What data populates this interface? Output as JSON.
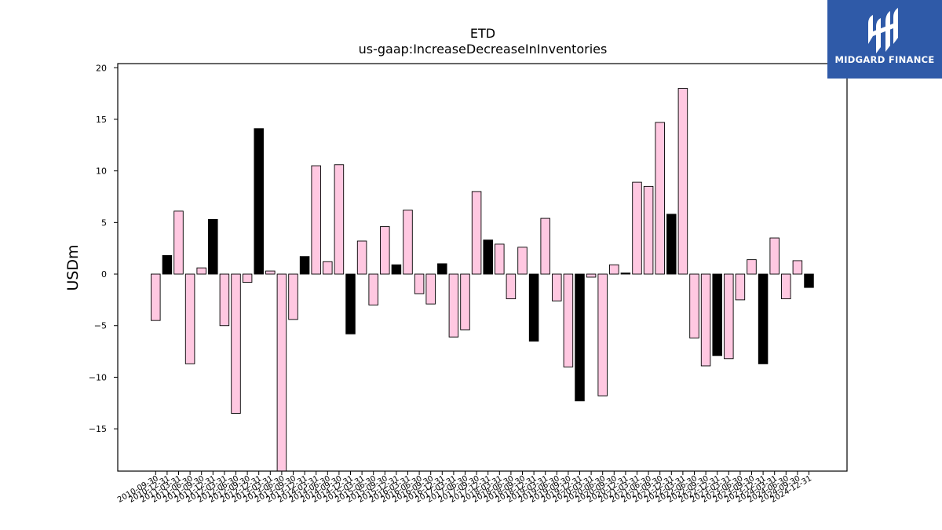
{
  "brand": {
    "name": "MIDGARD FINANCE",
    "color": "#2f5aa8"
  },
  "chart_data": {
    "type": "bar",
    "title": "ETD",
    "subtitle": "us-gaap:IncreaseDecreaseInInventories",
    "ylabel": "USDm",
    "xlabel": "",
    "ylim": [
      -19.1,
      20.4
    ],
    "yticks": [
      -15,
      -10,
      -5,
      0,
      5,
      10,
      15,
      20
    ],
    "grid": false,
    "colors": {
      "default": "#ffc8e1",
      "highlight": "#000000",
      "edge": "#000000"
    },
    "categories": [
      "2010-09-30",
      "2010-12-31",
      "2011-03-31",
      "2011-06-30",
      "2011-09-30",
      "2011-12-31",
      "2012-03-31",
      "2012-06-30",
      "2012-09-30",
      "2012-12-31",
      "2013-03-31",
      "2013-06-30",
      "2013-09-30",
      "2013-12-31",
      "2014-03-31",
      "2014-06-30",
      "2014-09-30",
      "2014-12-31",
      "2015-03-31",
      "2015-06-30",
      "2015-09-30",
      "2015-12-31",
      "2016-03-31",
      "2016-06-30",
      "2016-09-30",
      "2016-12-31",
      "2017-03-31",
      "2017-06-30",
      "2017-09-30",
      "2017-12-31",
      "2018-03-31",
      "2018-06-30",
      "2018-09-30",
      "2018-12-31",
      "2019-03-31",
      "2019-06-30",
      "2019-09-30",
      "2019-12-31",
      "2020-03-31",
      "2020-06-30",
      "2020-09-30",
      "2020-12-31",
      "2021-03-31",
      "2021-06-30",
      "2021-09-30",
      "2021-12-31",
      "2022-03-31",
      "2022-06-30",
      "2022-09-30",
      "2022-12-31",
      "2023-03-31",
      "2023-06-30",
      "2023-09-30",
      "2023-12-31",
      "2024-03-31",
      "2024-06-30",
      "2024-09-30",
      "2024-12-31"
    ],
    "values": [
      -4.5,
      1.8,
      6.1,
      -8.7,
      0.6,
      5.3,
      -5.0,
      -13.5,
      -0.8,
      14.1,
      0.3,
      -19.5,
      -4.4,
      1.7,
      10.5,
      1.2,
      10.6,
      -5.8,
      3.2,
      -3.0,
      4.6,
      0.9,
      6.2,
      -1.9,
      -2.9,
      1.0,
      -6.1,
      -5.4,
      8.0,
      3.3,
      2.9,
      -2.4,
      2.6,
      -6.5,
      5.4,
      -2.6,
      -9.0,
      -12.3,
      -0.3,
      -11.8,
      0.9,
      0.1,
      8.9,
      8.5,
      14.7,
      5.8,
      18.0,
      -6.2,
      -8.9,
      -7.9,
      -8.2,
      -2.5,
      1.4,
      -8.7,
      3.5,
      -2.4,
      1.3,
      -1.3
    ],
    "highlight": [
      false,
      true,
      false,
      false,
      false,
      true,
      false,
      false,
      false,
      true,
      false,
      false,
      false,
      true,
      false,
      false,
      false,
      true,
      false,
      false,
      false,
      true,
      false,
      false,
      false,
      true,
      false,
      false,
      false,
      true,
      false,
      false,
      false,
      true,
      false,
      false,
      false,
      true,
      false,
      false,
      false,
      true,
      false,
      false,
      false,
      true,
      false,
      false,
      false,
      true,
      false,
      false,
      false,
      true,
      false,
      false,
      false,
      true
    ]
  }
}
